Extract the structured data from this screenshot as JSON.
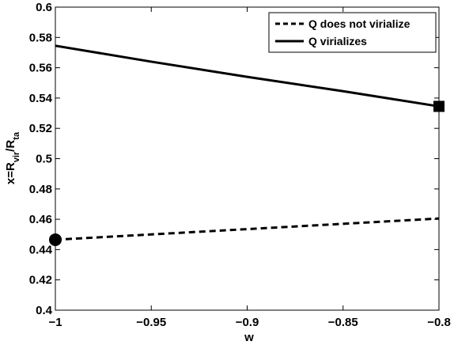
{
  "chart_data": {
    "type": "line",
    "xlabel": "w",
    "ylabel": {
      "prefix": "x=R",
      "sub1": "vir",
      "mid": "/R",
      "sub2": "ta"
    },
    "xlim": [
      -1,
      -0.8
    ],
    "ylim": [
      0.4,
      0.6
    ],
    "xticks": [
      -1,
      -0.95,
      -0.9,
      -0.85,
      -0.8
    ],
    "xtick_labels": [
      "-1",
      "-0.95",
      "-0.9",
      "-0.85",
      "-0.8"
    ],
    "yticks": [
      0.4,
      0.42,
      0.44,
      0.46,
      0.48,
      0.5,
      0.52,
      0.54,
      0.56,
      0.58,
      0.6
    ],
    "ytick_labels": [
      "0.4",
      "0.42",
      "0.44",
      "0.46",
      "0.48",
      "0.5",
      "0.52",
      "0.54",
      "0.56",
      "0.58",
      "0.6"
    ],
    "grid": false,
    "legend_position": "top-right",
    "series": [
      {
        "name": "Q does not virialize",
        "style": "dashed",
        "color": "#000000",
        "x": [
          -1.0,
          -0.95,
          -0.9,
          -0.85,
          -0.8
        ],
        "y": [
          0.4465,
          0.45,
          0.4535,
          0.457,
          0.4605
        ],
        "endpoint_marker": {
          "shape": "circle",
          "x": -1.0,
          "y": 0.4465
        }
      },
      {
        "name": "Q virializes",
        "style": "solid",
        "color": "#000000",
        "x": [
          -1.0,
          -0.95,
          -0.9,
          -0.85,
          -0.8
        ],
        "y": [
          0.5745,
          0.564,
          0.554,
          0.5445,
          0.5345
        ],
        "endpoint_marker": {
          "shape": "square",
          "x": -0.8,
          "y": 0.5345
        }
      }
    ]
  }
}
